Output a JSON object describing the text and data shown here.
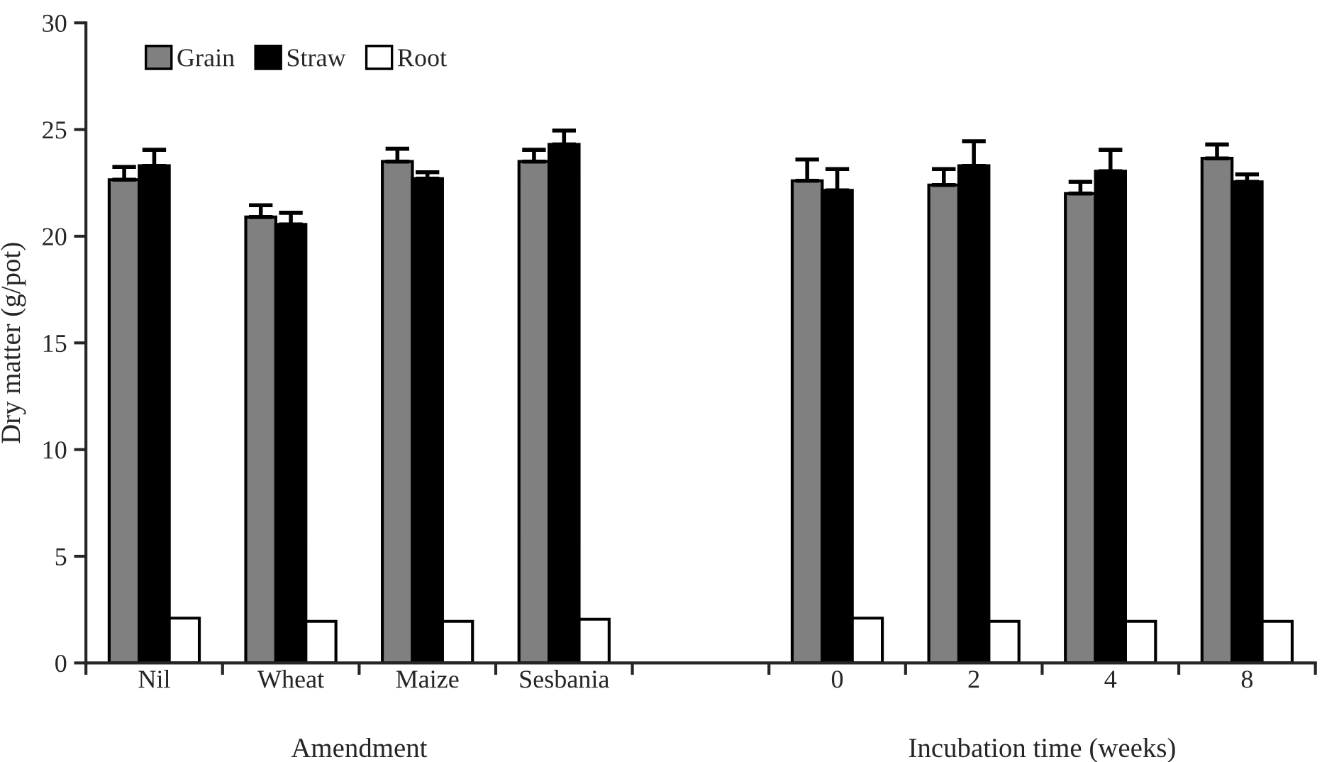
{
  "chart_data": {
    "type": "bar",
    "ylabel": "Dry matter (g/pot)",
    "categories": [
      "Nil",
      "Wheat",
      "Maize",
      "Sesbania",
      null,
      "0",
      "2",
      "4",
      "8"
    ],
    "series": [
      {
        "name": "Grain",
        "color": "#808080",
        "values": [
          22.65,
          20.9,
          23.5,
          23.5,
          null,
          22.6,
          22.4,
          22.0,
          23.65
        ],
        "errors": [
          [
            22.65,
            23.25
          ],
          [
            20.9,
            21.45
          ],
          [
            23.5,
            24.1
          ],
          [
            23.5,
            24.05
          ],
          null,
          [
            22.6,
            23.6
          ],
          [
            22.4,
            23.15
          ],
          [
            22.0,
            22.55
          ],
          [
            23.65,
            24.3
          ]
        ]
      },
      {
        "name": "Straw",
        "color": "#000000",
        "values": [
          23.3,
          20.55,
          22.7,
          24.3,
          null,
          22.15,
          23.3,
          23.05,
          22.55
        ],
        "errors": [
          [
            23.3,
            24.05
          ],
          [
            20.55,
            21.1
          ],
          [
            22.7,
            23.0
          ],
          [
            24.3,
            24.95
          ],
          null,
          [
            22.15,
            23.15
          ],
          [
            23.3,
            24.45
          ],
          [
            23.05,
            24.05
          ],
          [
            22.55,
            22.9
          ]
        ]
      },
      {
        "name": "Root",
        "color": "#ffffff",
        "values": [
          2.1,
          1.95,
          1.95,
          2.05,
          null,
          2.1,
          1.95,
          1.95,
          1.95
        ]
      }
    ],
    "ylim": [
      0,
      30
    ],
    "yticks": [
      0,
      5,
      10,
      15,
      20,
      25,
      30
    ],
    "annotations": [
      "Amendment",
      "Incubation time (weeks)"
    ],
    "legend": "top left",
    "grid": false
  }
}
